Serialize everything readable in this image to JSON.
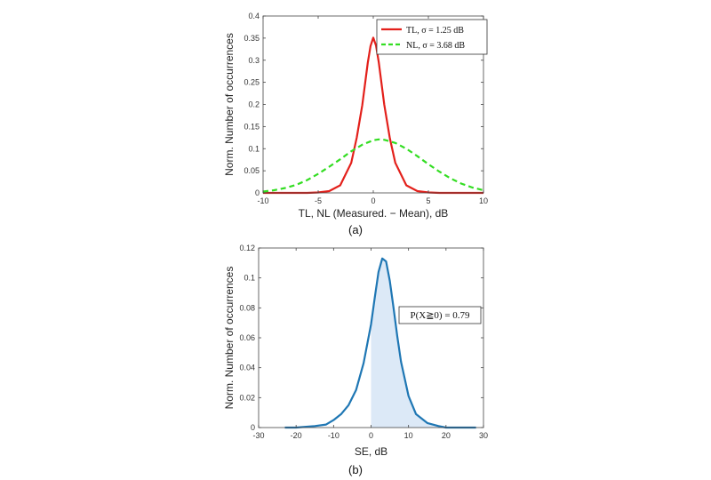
{
  "chart_data": [
    {
      "type": "line",
      "caption": "(a)",
      "xlabel": "TL, NL (Measured. − Mean), dB",
      "ylabel": "Norm. Number of occurrences",
      "xlim": [
        -10,
        10
      ],
      "ylim": [
        0,
        0.4
      ],
      "xticks": [
        -10,
        -5,
        0,
        5,
        10
      ],
      "yticks": [
        0,
        0.05,
        0.1,
        0.15,
        0.2,
        0.25,
        0.3,
        0.35,
        0.4
      ],
      "legend_position": "top-right",
      "grid": false,
      "series": [
        {
          "name": "TL, σ = 1.25 dB",
          "color": "#e3201b",
          "style": "solid",
          "x": [
            -10,
            -8,
            -6,
            -5,
            -4,
            -3,
            -2,
            -1.5,
            -1,
            -0.5,
            -0.25,
            0,
            0.25,
            0.5,
            1,
            1.5,
            2,
            3,
            4,
            5,
            6,
            8,
            10
          ],
          "y": [
            0,
            0,
            0,
            0.001,
            0.004,
            0.017,
            0.068,
            0.125,
            0.198,
            0.294,
            0.332,
            0.351,
            0.333,
            0.295,
            0.199,
            0.124,
            0.068,
            0.017,
            0.004,
            0.001,
            0,
            0,
            0
          ]
        },
        {
          "name": "NL, σ = 3.68 dB",
          "color": "#33dd22",
          "style": "dashed",
          "x": [
            -10,
            -9,
            -8,
            -7,
            -6,
            -5,
            -4,
            -3,
            -2,
            -1,
            0,
            0.5,
            1,
            2,
            3,
            4,
            5,
            6,
            7,
            8,
            9,
            10
          ],
          "y": [
            0.003,
            0.006,
            0.011,
            0.018,
            0.029,
            0.043,
            0.059,
            0.076,
            0.094,
            0.109,
            0.119,
            0.121,
            0.12,
            0.113,
            0.1,
            0.083,
            0.065,
            0.048,
            0.033,
            0.021,
            0.012,
            0.006
          ]
        }
      ]
    },
    {
      "type": "area",
      "caption": "(b)",
      "xlabel": "SE, dB",
      "ylabel": "Norm. Number of occurrences",
      "xlim": [
        -30,
        30
      ],
      "ylim": [
        0,
        0.12
      ],
      "xticks": [
        -30,
        -20,
        -10,
        0,
        10,
        20,
        30
      ],
      "yticks": [
        0,
        0.02,
        0.04,
        0.06,
        0.08,
        0.1,
        0.12
      ],
      "annotation": "P(X≧0) = 0.79",
      "shade_from_x": 0,
      "grid": false,
      "series": [
        {
          "color": "#1f77b4",
          "fill": "#dce9f7",
          "x": [
            -23,
            -20,
            -15,
            -12,
            -10,
            -8,
            -6,
            -4,
            -2,
            0,
            1,
            2,
            3,
            4,
            5,
            6,
            7,
            8,
            10,
            12,
            15,
            18,
            20,
            25,
            28
          ],
          "y": [
            0,
            0,
            0.001,
            0.002,
            0.005,
            0.009,
            0.015,
            0.025,
            0.043,
            0.069,
            0.087,
            0.104,
            0.113,
            0.111,
            0.098,
            0.08,
            0.061,
            0.044,
            0.021,
            0.009,
            0.003,
            0.001,
            0,
            0,
            0
          ]
        }
      ]
    }
  ]
}
